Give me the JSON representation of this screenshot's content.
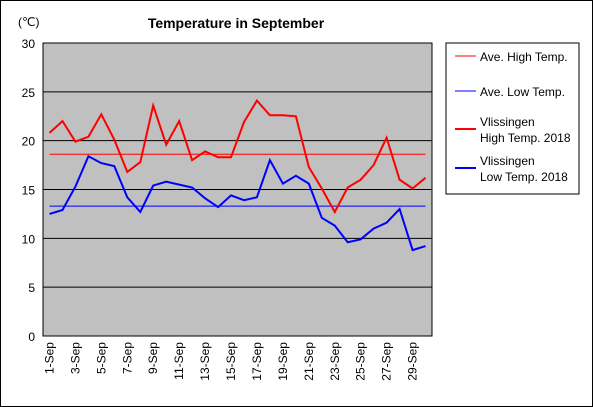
{
  "chart_data": {
    "type": "line",
    "title": "Temperature in September",
    "unit_label": "(℃)",
    "ylim": [
      0,
      30
    ],
    "yticks": [
      0,
      5,
      10,
      15,
      20,
      25,
      30
    ],
    "grid": true,
    "legend_position": "right",
    "x": [
      "1-Sep",
      "2-Sep",
      "3-Sep",
      "4-Sep",
      "5-Sep",
      "6-Sep",
      "7-Sep",
      "8-Sep",
      "9-Sep",
      "10-Sep",
      "11-Sep",
      "12-Sep",
      "13-Sep",
      "14-Sep",
      "15-Sep",
      "16-Sep",
      "17-Sep",
      "18-Sep",
      "19-Sep",
      "20-Sep",
      "21-Sep",
      "22-Sep",
      "23-Sep",
      "24-Sep",
      "25-Sep",
      "26-Sep",
      "27-Sep",
      "28-Sep",
      "29-Sep",
      "30-Sep"
    ],
    "xtick_labels": [
      "1-Sep",
      "3-Sep",
      "5-Sep",
      "7-Sep",
      "9-Sep",
      "11-Sep",
      "13-Sep",
      "15-Sep",
      "17-Sep",
      "19-Sep",
      "21-Sep",
      "23-Sep",
      "25-Sep",
      "27-Sep",
      "29-Sep"
    ],
    "series": [
      {
        "name": "Ave. High Temp.",
        "color": "#ff0000",
        "style": "thin",
        "values": [
          18.6,
          18.6,
          18.6,
          18.6,
          18.6,
          18.6,
          18.6,
          18.6,
          18.6,
          18.6,
          18.6,
          18.6,
          18.6,
          18.6,
          18.6,
          18.6,
          18.6,
          18.6,
          18.6,
          18.6,
          18.6,
          18.6,
          18.6,
          18.6,
          18.6,
          18.6,
          18.6,
          18.6,
          18.6,
          18.6
        ]
      },
      {
        "name": "Ave. Low Temp.",
        "color": "#0000ff",
        "style": "thin",
        "values": [
          13.3,
          13.3,
          13.3,
          13.3,
          13.3,
          13.3,
          13.3,
          13.3,
          13.3,
          13.3,
          13.3,
          13.3,
          13.3,
          13.3,
          13.3,
          13.3,
          13.3,
          13.3,
          13.3,
          13.3,
          13.3,
          13.3,
          13.3,
          13.3,
          13.3,
          13.3,
          13.3,
          13.3,
          13.3,
          13.3
        ]
      },
      {
        "name": "Vlissingen High Temp. 2018",
        "name_lines": [
          "Vlissingen",
          "High Temp. 2018"
        ],
        "color": "#ff0000",
        "style": "thick",
        "values": [
          20.8,
          22.0,
          19.9,
          20.4,
          22.7,
          20.1,
          16.8,
          17.8,
          23.6,
          19.6,
          22.0,
          18.0,
          18.9,
          18.3,
          18.3,
          21.9,
          24.1,
          22.6,
          22.6,
          22.5,
          17.3,
          15.1,
          12.7,
          15.2,
          16.0,
          17.5,
          20.3,
          16.0,
          15.1,
          16.2
        ]
      },
      {
        "name": "Vlissingen Low Temp. 2018",
        "name_lines": [
          "Vlissingen",
          "Low Temp. 2018"
        ],
        "color": "#0000ff",
        "style": "thick",
        "values": [
          12.5,
          12.9,
          15.3,
          18.4,
          17.7,
          17.4,
          14.2,
          12.7,
          15.4,
          15.8,
          15.5,
          15.2,
          14.1,
          13.2,
          14.4,
          13.9,
          14.2,
          18.0,
          15.6,
          16.4,
          15.6,
          12.1,
          11.3,
          9.6,
          9.9,
          11.0,
          11.6,
          13.0,
          8.8,
          9.2
        ]
      }
    ]
  }
}
